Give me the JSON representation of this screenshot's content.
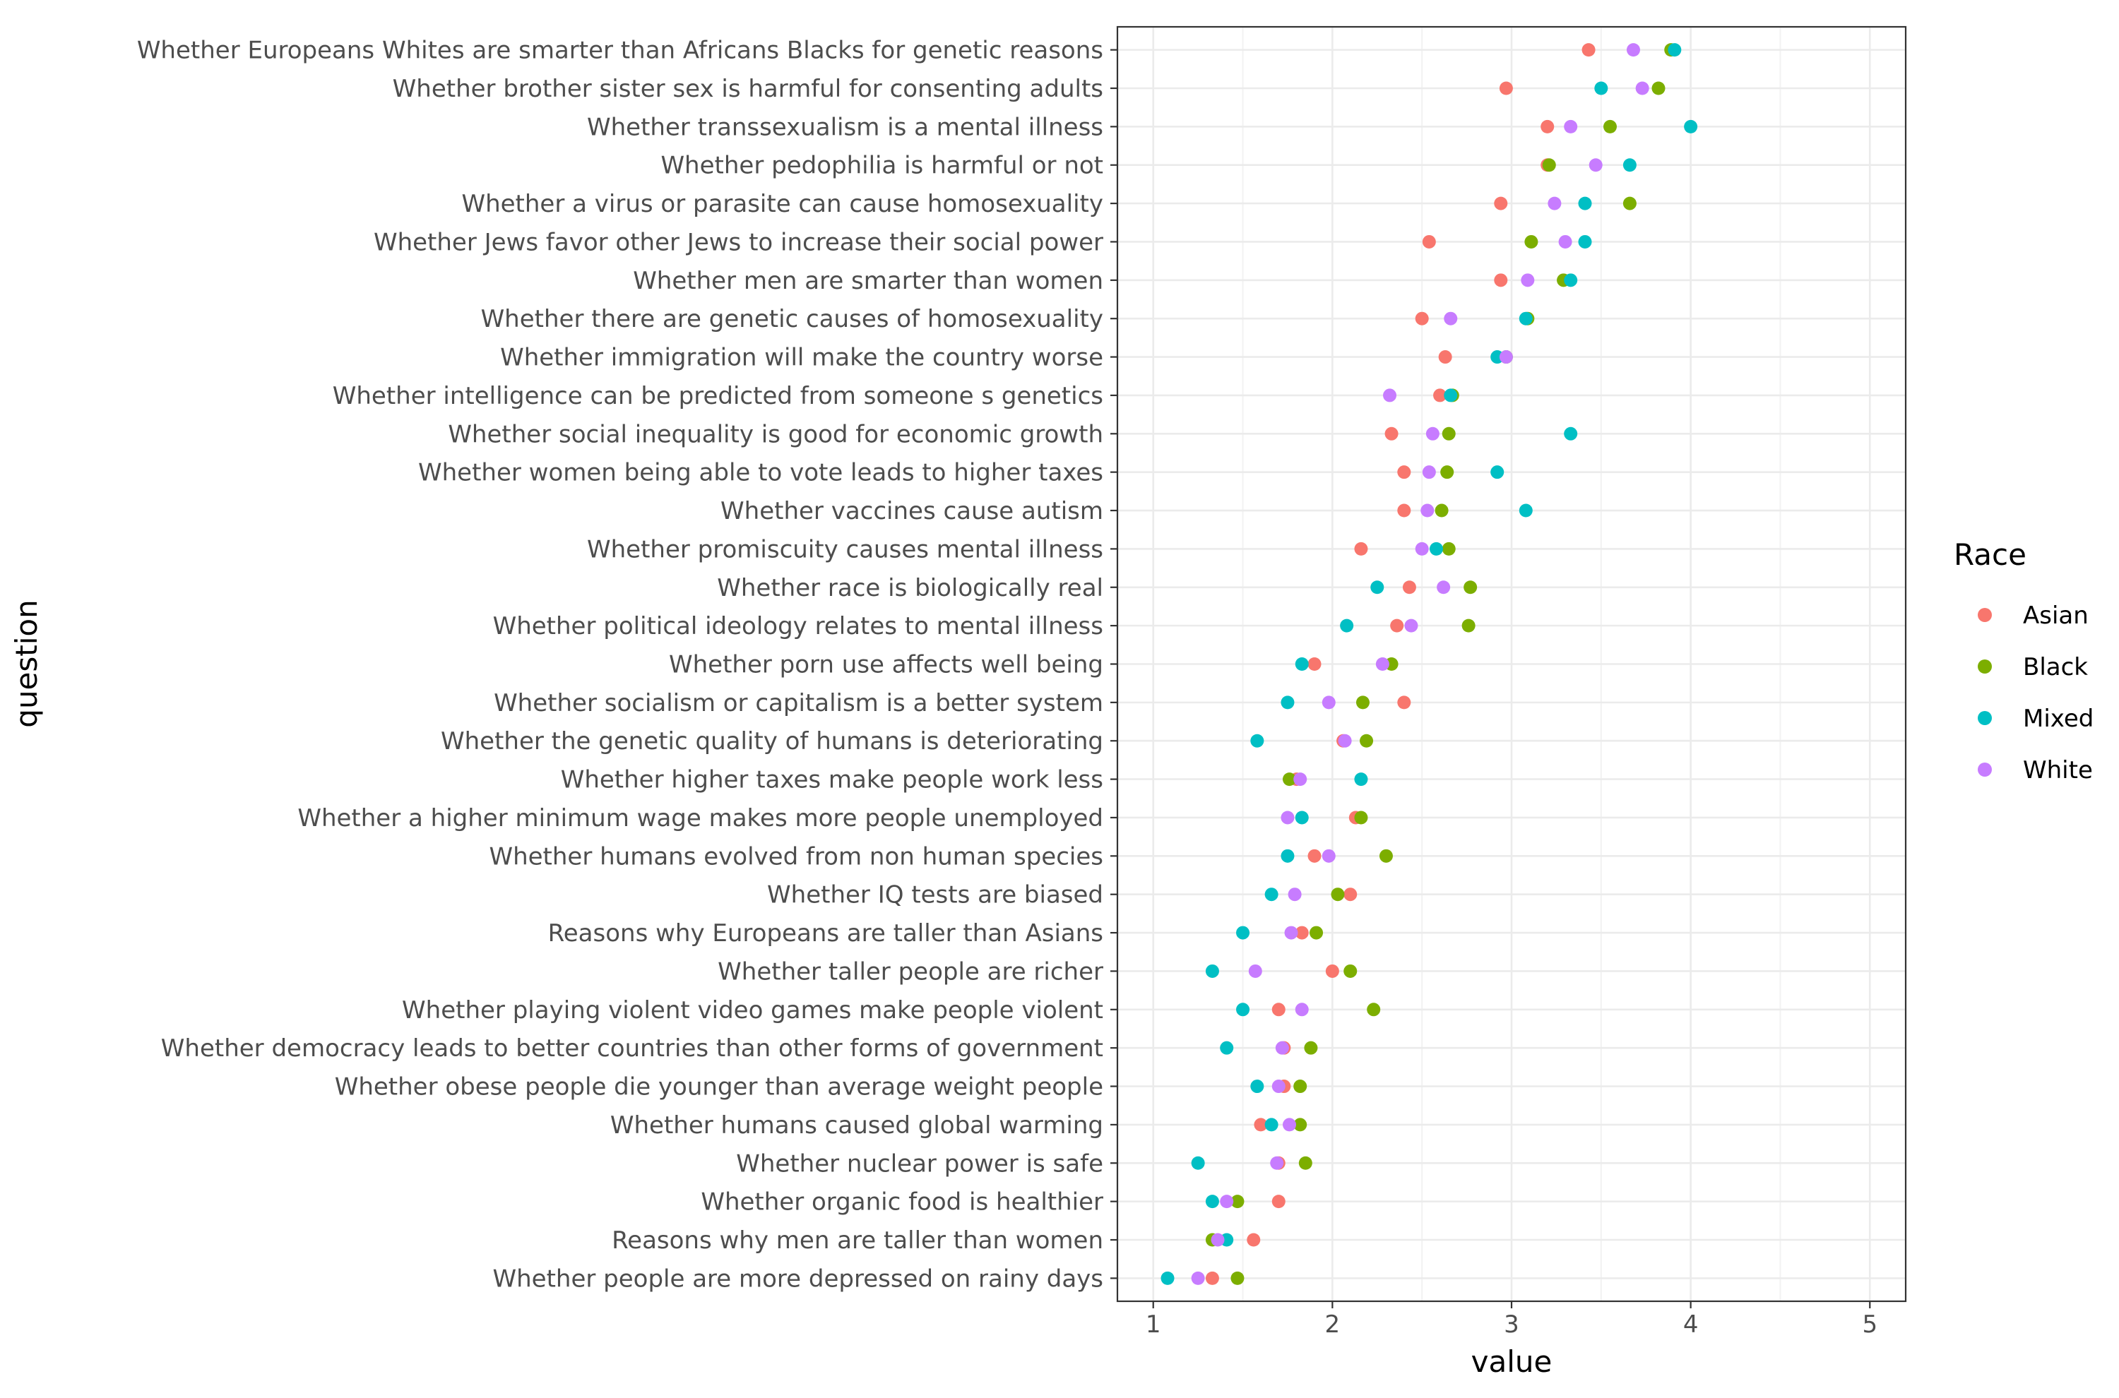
{
  "chart_data": {
    "type": "scatter",
    "xlabel": "value",
    "ylabel": "question",
    "xlim": [
      0.8,
      5.2
    ],
    "x_ticks": [
      1,
      2,
      3,
      4,
      5
    ],
    "grid": true,
    "legend": {
      "title": "Race",
      "position": "right"
    },
    "categories": [
      "Whether Europeans Whites are smarter than Africans Blacks for genetic reasons",
      "Whether brother sister sex is harmful for consenting adults",
      "Whether transsexualism is a mental illness",
      "Whether pedophilia is harmful or not",
      "Whether a virus or parasite can cause homosexuality",
      "Whether Jews favor other Jews to increase their social power",
      "Whether men are smarter than women",
      "Whether there are genetic causes of homosexuality",
      "Whether immigration will make the country worse",
      "Whether intelligence can be predicted from someone s genetics",
      "Whether social inequality is good for economic growth",
      "Whether women being able to vote leads to higher taxes",
      "Whether vaccines cause autism",
      "Whether promiscuity causes mental illness",
      "Whether race is biologically real",
      "Whether political ideology relates to mental illness",
      "Whether porn use affects well being",
      "Whether socialism or capitalism is a better system",
      "Whether the genetic quality of humans is deteriorating",
      "Whether higher taxes make people work less",
      "Whether a higher minimum wage makes more people unemployed",
      "Whether humans evolved from non human species",
      "Whether IQ tests are biased",
      "Reasons why Europeans are taller than Asians",
      "Whether taller people are richer",
      "Whether playing violent video games make people violent",
      "Whether democracy leads to better countries than other forms of government",
      "Whether obese people die younger than average weight people",
      "Whether humans caused global warming",
      "Whether nuclear power is safe",
      "Whether organic food is healthier",
      "Reasons why men are taller than women",
      "Whether people are more depressed on rainy days"
    ],
    "series": [
      {
        "name": "Asian",
        "color": "#F8766D",
        "values": [
          3.43,
          2.97,
          3.2,
          3.2,
          2.94,
          2.54,
          2.94,
          2.5,
          2.63,
          2.6,
          2.33,
          2.4,
          2.4,
          2.16,
          2.43,
          2.36,
          1.9,
          2.4,
          2.06,
          1.8,
          2.13,
          1.9,
          2.1,
          1.83,
          2.0,
          1.7,
          1.73,
          1.73,
          1.6,
          1.7,
          1.7,
          1.56,
          1.33
        ]
      },
      {
        "name": "Black",
        "color": "#7CAE00",
        "values": [
          3.89,
          3.82,
          3.55,
          3.21,
          3.66,
          3.11,
          3.29,
          3.09,
          2.97,
          2.67,
          2.65,
          2.64,
          2.61,
          2.65,
          2.77,
          2.76,
          2.33,
          2.17,
          2.19,
          1.76,
          2.16,
          2.3,
          2.03,
          1.91,
          2.1,
          2.23,
          1.88,
          1.82,
          1.82,
          1.85,
          1.47,
          1.33,
          1.47
        ]
      },
      {
        "name": "Mixed",
        "color": "#00BFC4",
        "values": [
          3.91,
          3.5,
          4.0,
          3.66,
          3.41,
          3.41,
          3.33,
          3.08,
          2.92,
          2.66,
          3.33,
          2.92,
          3.08,
          2.58,
          2.25,
          2.08,
          1.83,
          1.75,
          1.58,
          2.16,
          1.83,
          1.75,
          1.66,
          1.5,
          1.33,
          1.5,
          1.41,
          1.58,
          1.66,
          1.25,
          1.33,
          1.41,
          1.08
        ]
      },
      {
        "name": "White",
        "color": "#C77CFF",
        "values": [
          3.68,
          3.73,
          3.33,
          3.47,
          3.24,
          3.3,
          3.09,
          2.66,
          2.97,
          2.32,
          2.56,
          2.54,
          2.53,
          2.5,
          2.62,
          2.44,
          2.28,
          1.98,
          2.07,
          1.82,
          1.75,
          1.98,
          1.79,
          1.77,
          1.57,
          1.83,
          1.72,
          1.7,
          1.76,
          1.69,
          1.41,
          1.36,
          1.25
        ]
      }
    ]
  }
}
